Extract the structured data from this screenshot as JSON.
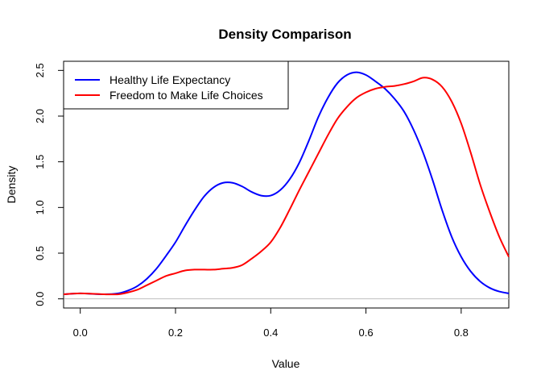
{
  "chart_data": {
    "type": "line",
    "title": "Density Comparison",
    "xlabel": "Value",
    "ylabel": "Density",
    "xlim": [
      -0.035,
      0.9
    ],
    "ylim": [
      -0.1,
      2.6
    ],
    "x_ticks": [
      0.0,
      0.2,
      0.4,
      0.6,
      0.8
    ],
    "x_tick_labels": [
      "0.0",
      "0.2",
      "0.4",
      "0.6",
      "0.8"
    ],
    "y_ticks": [
      0.0,
      0.5,
      1.0,
      1.5,
      2.0,
      2.5
    ],
    "y_tick_labels": [
      "0.0",
      "0.5",
      "1.0",
      "1.5",
      "2.0",
      "2.5"
    ],
    "baseline": 0,
    "baseline_color": "#bebebe",
    "grid": false,
    "legend_position": "top-left",
    "series": [
      {
        "name": "Healthy Life Expectancy",
        "color": "#0000ff",
        "x": [
          -0.035,
          0.0,
          0.05,
          0.08,
          0.1,
          0.12,
          0.14,
          0.16,
          0.18,
          0.2,
          0.22,
          0.24,
          0.26,
          0.28,
          0.3,
          0.32,
          0.34,
          0.36,
          0.38,
          0.4,
          0.42,
          0.44,
          0.46,
          0.48,
          0.5,
          0.52,
          0.54,
          0.56,
          0.58,
          0.6,
          0.62,
          0.64,
          0.66,
          0.68,
          0.7,
          0.72,
          0.74,
          0.76,
          0.78,
          0.8,
          0.82,
          0.84,
          0.86,
          0.88,
          0.9
        ],
        "y": [
          0.05,
          0.06,
          0.05,
          0.06,
          0.09,
          0.14,
          0.22,
          0.33,
          0.47,
          0.62,
          0.8,
          0.97,
          1.12,
          1.22,
          1.27,
          1.27,
          1.23,
          1.17,
          1.13,
          1.13,
          1.19,
          1.31,
          1.49,
          1.73,
          1.99,
          2.2,
          2.36,
          2.45,
          2.48,
          2.45,
          2.38,
          2.3,
          2.19,
          2.05,
          1.85,
          1.6,
          1.3,
          0.97,
          0.68,
          0.46,
          0.3,
          0.19,
          0.12,
          0.08,
          0.06
        ]
      },
      {
        "name": "Freedom to Make Life Choices",
        "color": "#ff0000",
        "x": [
          -0.035,
          0.0,
          0.05,
          0.08,
          0.1,
          0.12,
          0.14,
          0.16,
          0.18,
          0.2,
          0.22,
          0.24,
          0.26,
          0.28,
          0.3,
          0.32,
          0.34,
          0.36,
          0.38,
          0.4,
          0.42,
          0.44,
          0.46,
          0.48,
          0.5,
          0.52,
          0.54,
          0.56,
          0.58,
          0.6,
          0.62,
          0.64,
          0.66,
          0.68,
          0.7,
          0.72,
          0.74,
          0.76,
          0.78,
          0.8,
          0.82,
          0.84,
          0.86,
          0.88,
          0.9
        ],
        "y": [
          0.05,
          0.06,
          0.05,
          0.05,
          0.07,
          0.1,
          0.15,
          0.2,
          0.25,
          0.28,
          0.31,
          0.32,
          0.32,
          0.32,
          0.33,
          0.34,
          0.37,
          0.44,
          0.52,
          0.62,
          0.78,
          0.98,
          1.19,
          1.39,
          1.59,
          1.79,
          1.97,
          2.1,
          2.2,
          2.26,
          2.3,
          2.32,
          2.33,
          2.35,
          2.38,
          2.42,
          2.4,
          2.32,
          2.16,
          1.92,
          1.6,
          1.25,
          0.95,
          0.68,
          0.46
        ]
      }
    ]
  }
}
